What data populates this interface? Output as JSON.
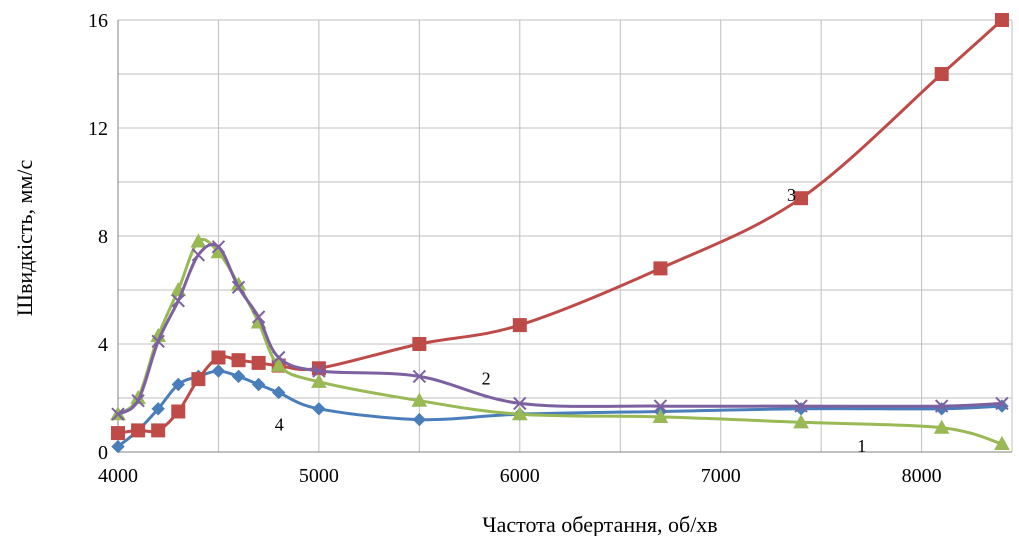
{
  "chart_data": {
    "type": "line",
    "title": "",
    "xlabel": "Частота обертання, об/хв",
    "ylabel": "Швидкість,  мм/с",
    "xlim": [
      4000,
      8450
    ],
    "ylim": [
      0,
      16
    ],
    "x_ticks": [
      4000,
      5000,
      6000,
      7000,
      8000
    ],
    "y_ticks": [
      0,
      4,
      8,
      12,
      16
    ],
    "grid": true,
    "x_minor_grid_step": 500,
    "y_minor_grid_step": 2,
    "series": [
      {
        "label": "4",
        "color": "#4a7ebb",
        "marker": "diamond",
        "points": [
          [
            4000,
            0.2
          ],
          [
            4100,
            0.8
          ],
          [
            4200,
            1.6
          ],
          [
            4300,
            2.5
          ],
          [
            4400,
            2.8
          ],
          [
            4500,
            3.0
          ],
          [
            4600,
            2.8
          ],
          [
            4700,
            2.5
          ],
          [
            4800,
            2.2
          ],
          [
            5000,
            1.6
          ],
          [
            5500,
            1.2
          ],
          [
            6000,
            1.4
          ],
          [
            6700,
            1.5
          ],
          [
            7400,
            1.6
          ],
          [
            8100,
            1.6
          ],
          [
            8400,
            1.7
          ]
        ]
      },
      {
        "label": "3",
        "color": "#be4b48",
        "marker": "square",
        "points": [
          [
            4000,
            0.7
          ],
          [
            4100,
            0.8
          ],
          [
            4200,
            0.8
          ],
          [
            4300,
            1.5
          ],
          [
            4400,
            2.7
          ],
          [
            4500,
            3.5
          ],
          [
            4600,
            3.4
          ],
          [
            4700,
            3.3
          ],
          [
            4800,
            3.2
          ],
          [
            5000,
            3.1
          ],
          [
            5500,
            4.0
          ],
          [
            6000,
            4.7
          ],
          [
            6700,
            6.8
          ],
          [
            7400,
            9.4
          ],
          [
            8100,
            14.0
          ],
          [
            8400,
            16.0
          ]
        ]
      },
      {
        "label": "1",
        "color": "#98b954",
        "marker": "triangle",
        "points": [
          [
            4000,
            1.4
          ],
          [
            4100,
            2.0
          ],
          [
            4200,
            4.3
          ],
          [
            4300,
            6.0
          ],
          [
            4400,
            7.8
          ],
          [
            4500,
            7.4
          ],
          [
            4600,
            6.2
          ],
          [
            4700,
            4.8
          ],
          [
            4800,
            3.2
          ],
          [
            5000,
            2.6
          ],
          [
            5500,
            1.9
          ],
          [
            6000,
            1.4
          ],
          [
            6700,
            1.3
          ],
          [
            7400,
            1.1
          ],
          [
            8100,
            0.9
          ],
          [
            8400,
            0.3
          ]
        ]
      },
      {
        "label": "2",
        "color": "#7d60a0",
        "marker": "x",
        "points": [
          [
            4000,
            1.4
          ],
          [
            4100,
            1.9
          ],
          [
            4200,
            4.1
          ],
          [
            4300,
            5.6
          ],
          [
            4400,
            7.3
          ],
          [
            4500,
            7.6
          ],
          [
            4600,
            6.1
          ],
          [
            4700,
            5.0
          ],
          [
            4800,
            3.5
          ],
          [
            5000,
            3.0
          ],
          [
            5500,
            2.8
          ],
          [
            6000,
            1.8
          ],
          [
            6700,
            1.7
          ],
          [
            7400,
            1.7
          ],
          [
            8100,
            1.7
          ],
          [
            8400,
            1.8
          ]
        ]
      }
    ],
    "curve_labels": [
      {
        "text": "3",
        "x": 7330,
        "y": 9.3
      },
      {
        "text": "2",
        "x": 5810,
        "y": 2.5
      },
      {
        "text": "4",
        "x": 4780,
        "y": 0.8
      },
      {
        "text": "1",
        "x": 7680,
        "y": 0.0
      }
    ]
  }
}
